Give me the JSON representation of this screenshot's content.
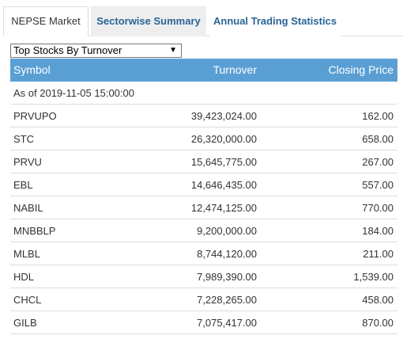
{
  "tabs": [
    "NEPSE Market",
    "Sectorwise Summary",
    "Annual Trading Statistics"
  ],
  "select": {
    "value": "Top Stocks By Turnover",
    "arrow": "▼"
  },
  "table": {
    "headers": [
      "Symbol",
      "Turnover",
      "Closing Price"
    ],
    "as_of": "As of 2019-11-05 15:00:00",
    "rows": [
      [
        "PRVUPO",
        "39,423,024.00",
        "162.00"
      ],
      [
        "STC",
        "26,320,000.00",
        "658.00"
      ],
      [
        "PRVU",
        "15,645,775.00",
        "267.00"
      ],
      [
        "EBL",
        "14,646,435.00",
        "557.00"
      ],
      [
        "NABIL",
        "12,474,125.00",
        "770.00"
      ],
      [
        "MNBBLP",
        "9,200,000.00",
        "184.00"
      ],
      [
        "MLBL",
        "8,744,120.00",
        "211.00"
      ],
      [
        "HDL",
        "7,989,390.00",
        "1,539.00"
      ],
      [
        "CHCL",
        "7,228,265.00",
        "458.00"
      ],
      [
        "GILB",
        "7,075,417.00",
        "870.00"
      ]
    ]
  }
}
